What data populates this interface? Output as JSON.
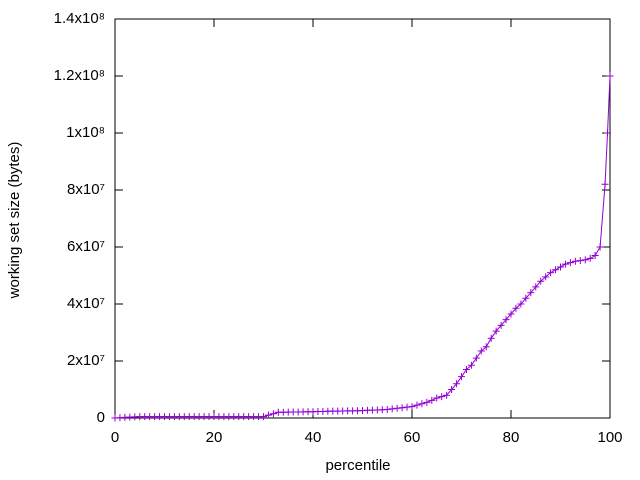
{
  "chart_data": {
    "type": "line",
    "xlabel": "percentile",
    "ylabel": "working set size (bytes)",
    "x": [
      0,
      1,
      2,
      3,
      4,
      5,
      6,
      7,
      8,
      9,
      10,
      11,
      12,
      13,
      14,
      15,
      16,
      17,
      18,
      19,
      20,
      21,
      22,
      23,
      24,
      25,
      26,
      27,
      28,
      29,
      30,
      31,
      32,
      33,
      34,
      35,
      36,
      37,
      38,
      39,
      40,
      41,
      42,
      43,
      44,
      45,
      46,
      47,
      48,
      49,
      50,
      51,
      52,
      53,
      54,
      55,
      56,
      57,
      58,
      59,
      60,
      61,
      62,
      63,
      64,
      65,
      66,
      67,
      68,
      69,
      70,
      71,
      72,
      73,
      74,
      75,
      76,
      77,
      78,
      79,
      80,
      81,
      82,
      83,
      84,
      85,
      86,
      87,
      88,
      89,
      90,
      91,
      92,
      93,
      94,
      95,
      96,
      97,
      98,
      99,
      99.5,
      100
    ],
    "series": [
      {
        "color": "#9400d3",
        "values": [
          0,
          100000,
          200000,
          300000,
          400000,
          500000,
          500000,
          500000,
          500000,
          500000,
          500000,
          500000,
          500000,
          500000,
          500000,
          500000,
          500000,
          500000,
          500000,
          500000,
          500000,
          500000,
          500000,
          500000,
          500000,
          500000,
          500000,
          500000,
          500000,
          500000,
          500000,
          1000000,
          1500000,
          2000000,
          2000000,
          2050000,
          2100000,
          2100000,
          2150000,
          2200000,
          2200000,
          2300000,
          2300000,
          2350000,
          2400000,
          2400000,
          2450000,
          2500000,
          2500000,
          2550000,
          2600000,
          2700000,
          2750000,
          2800000,
          2900000,
          3000000,
          3200000,
          3400000,
          3600000,
          3800000,
          4000000,
          4500000,
          5000000,
          5500000,
          6200000,
          7000000,
          7500000,
          8000000,
          10000000,
          12000000,
          14500000,
          17000000,
          18500000,
          21000000,
          23500000,
          25000000,
          28000000,
          30500000,
          32500000,
          34500000,
          36500000,
          38500000,
          40000000,
          42000000,
          44000000,
          46000000,
          48000000,
          49500000,
          51000000,
          52000000,
          53000000,
          54000000,
          54500000,
          55000000,
          55200000,
          55500000,
          56000000,
          57000000,
          60000000,
          82000000,
          100000000,
          120000000
        ]
      }
    ],
    "xlim": [
      0,
      100
    ],
    "xticks": [
      0,
      20,
      40,
      60,
      80,
      100
    ],
    "ylim": [
      0,
      140000000
    ],
    "yticks": [
      0,
      {
        "value": 20000000,
        "label": "2x10⁷"
      },
      {
        "value": 40000000,
        "label": "4x10⁷"
      },
      {
        "value": 60000000,
        "label": "6x10⁷"
      },
      {
        "value": 80000000,
        "label": "8x10⁷"
      },
      {
        "value": 100000000,
        "label": "1x10⁸"
      },
      {
        "value": 120000000,
        "label": "1.2x10⁸"
      },
      {
        "value": 140000000,
        "label": "1.4x10⁸"
      }
    ]
  }
}
